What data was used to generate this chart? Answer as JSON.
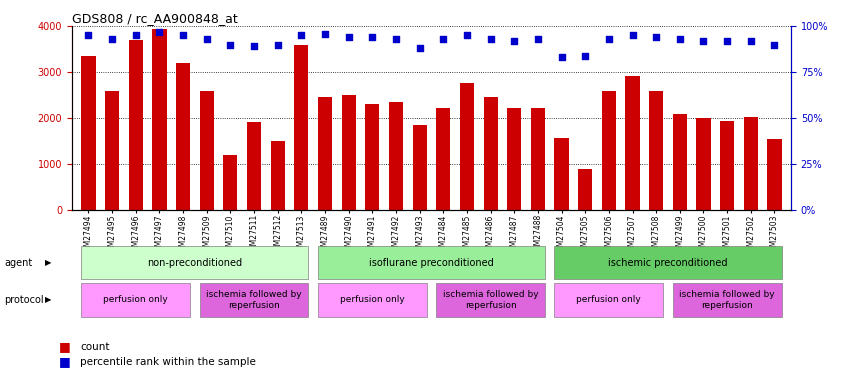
{
  "title": "GDS808 / rc_AA900848_at",
  "samples": [
    "GSM27494",
    "GSM27495",
    "GSM27496",
    "GSM27497",
    "GSM27498",
    "GSM27509",
    "GSM27510",
    "GSM27511",
    "GSM27512",
    "GSM27513",
    "GSM27489",
    "GSM27490",
    "GSM27491",
    "GSM27492",
    "GSM27493",
    "GSM27484",
    "GSM27485",
    "GSM27486",
    "GSM27487",
    "GSM27488",
    "GSM27504",
    "GSM27505",
    "GSM27506",
    "GSM27507",
    "GSM27508",
    "GSM27499",
    "GSM27500",
    "GSM27501",
    "GSM27502",
    "GSM27503"
  ],
  "counts": [
    3350,
    2600,
    3700,
    3950,
    3200,
    2580,
    1200,
    1920,
    1500,
    3600,
    2460,
    2500,
    2300,
    2350,
    1850,
    2230,
    2760,
    2460,
    2230,
    2230,
    1560,
    900,
    2600,
    2920,
    2600,
    2100,
    2000,
    1940,
    2020,
    1540
  ],
  "percentiles": [
    95,
    93,
    95,
    97,
    95,
    93,
    90,
    89,
    90,
    95,
    96,
    94,
    94,
    93,
    88,
    93,
    95,
    93,
    92,
    93,
    83,
    84,
    93,
    95,
    94,
    93,
    92,
    92,
    92,
    90
  ],
  "bar_color": "#cc0000",
  "dot_color": "#0000cc",
  "ylim_left": [
    0,
    4000
  ],
  "ylim_right": [
    0,
    100
  ],
  "yticks_left": [
    0,
    1000,
    2000,
    3000,
    4000
  ],
  "yticks_right": [
    0,
    25,
    50,
    75,
    100
  ],
  "agent_groups": [
    {
      "label": "non-preconditioned",
      "start": 0,
      "end": 10,
      "color": "#ccffcc"
    },
    {
      "label": "isoflurane preconditioned",
      "start": 10,
      "end": 20,
      "color": "#99ee99"
    },
    {
      "label": "ischemic preconditioned",
      "start": 20,
      "end": 30,
      "color": "#66cc66"
    }
  ],
  "protocol_groups": [
    {
      "label": "perfusion only",
      "start": 0,
      "end": 5,
      "color": "#ff99ff"
    },
    {
      "label": "ischemia followed by\nreperfusion",
      "start": 5,
      "end": 10,
      "color": "#dd66dd"
    },
    {
      "label": "perfusion only",
      "start": 10,
      "end": 15,
      "color": "#ff99ff"
    },
    {
      "label": "ischemia followed by\nreperfusion",
      "start": 15,
      "end": 20,
      "color": "#dd66dd"
    },
    {
      "label": "perfusion only",
      "start": 20,
      "end": 25,
      "color": "#ff99ff"
    },
    {
      "label": "ischemia followed by\nreperfusion",
      "start": 25,
      "end": 30,
      "color": "#dd66dd"
    }
  ]
}
